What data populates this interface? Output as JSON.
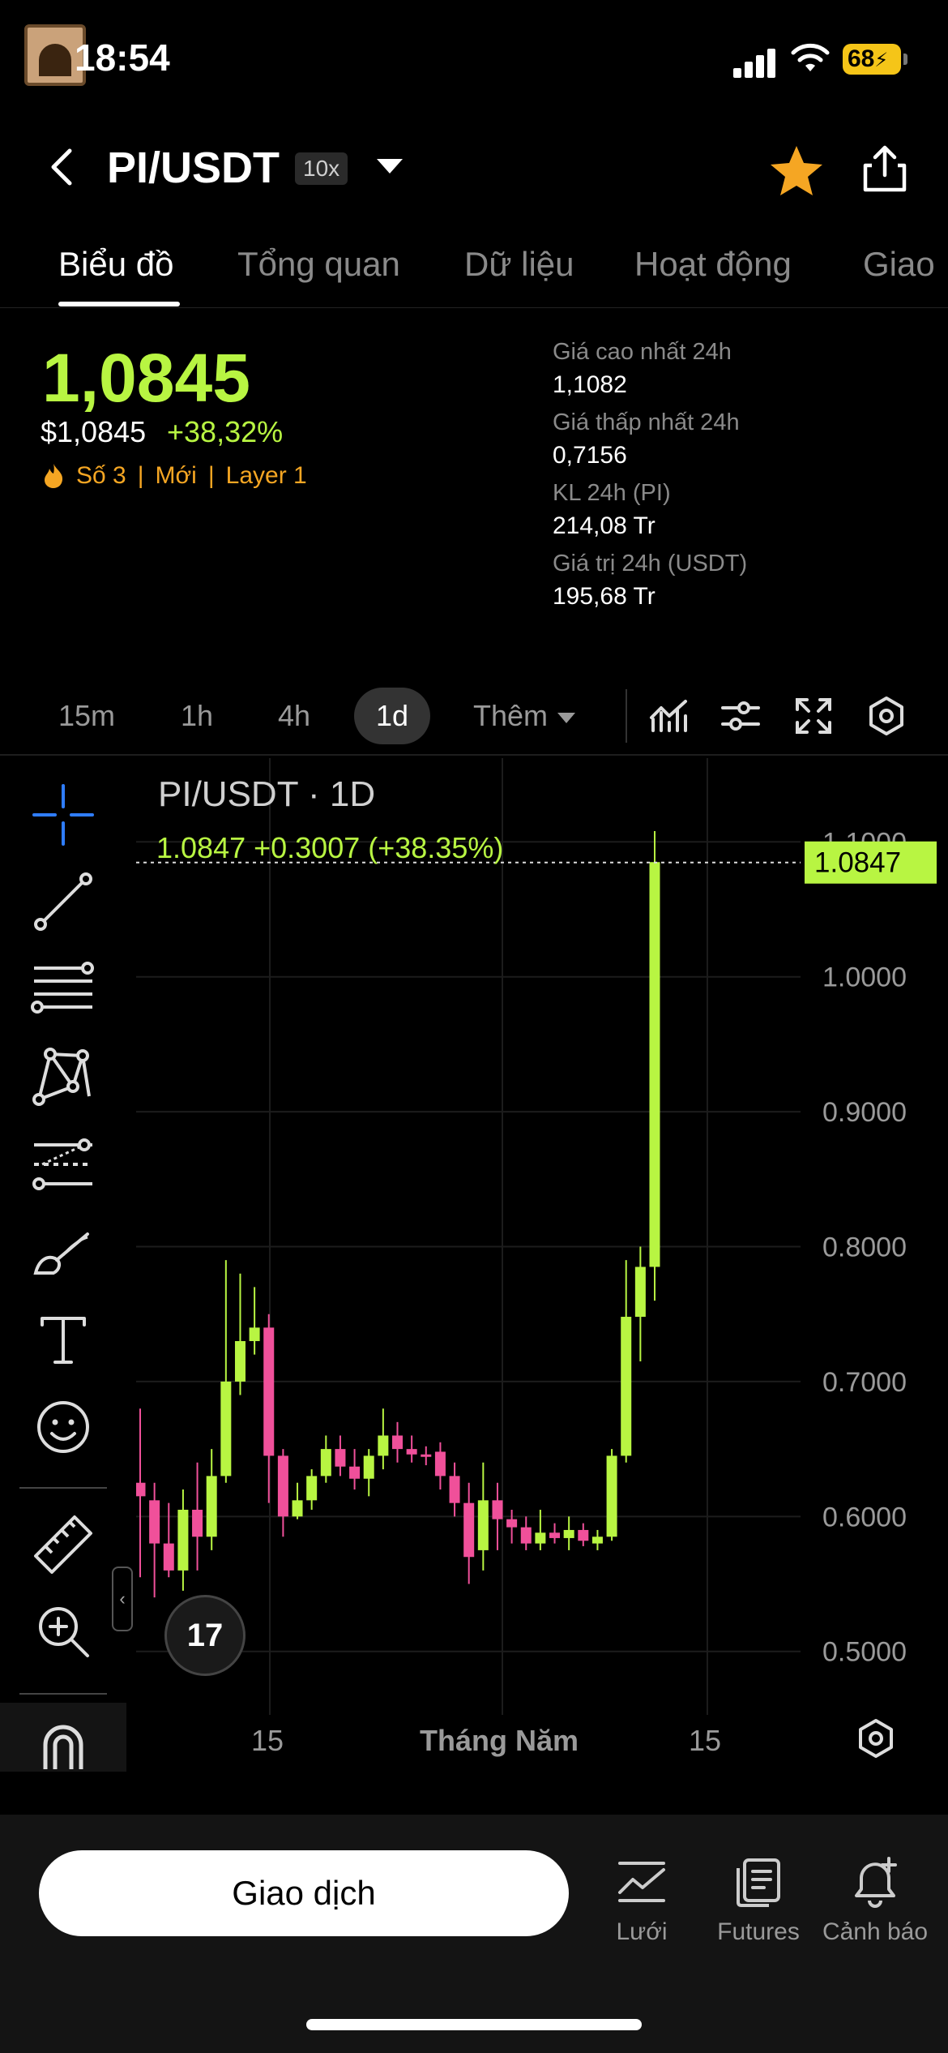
{
  "status": {
    "time": "18:54",
    "battery": "68"
  },
  "header": {
    "pair": "PI/USDT",
    "leverage": "10x"
  },
  "tabs": [
    {
      "label": "Biểu đồ"
    },
    {
      "label": "Tổng quan"
    },
    {
      "label": "Dữ liệu"
    },
    {
      "label": "Hoạt động"
    },
    {
      "label": "Giao"
    }
  ],
  "price": {
    "last": "1,0845",
    "usd": "$1,0845",
    "change": "+38,32%",
    "tags": [
      "Số 3",
      "Mới",
      "Layer 1"
    ]
  },
  "stats": [
    {
      "label": "Giá cao nhất 24h",
      "value": "1,1082"
    },
    {
      "label": "Giá thấp nhất 24h",
      "value": "0,7156"
    },
    {
      "label": "KL 24h (PI)",
      "value": "214,08 Tr"
    },
    {
      "label": "Giá trị 24h (USDT)",
      "value": "195,68 Tr"
    }
  ],
  "timeframes": [
    "15m",
    "1h",
    "4h",
    "1d"
  ],
  "timeframe_more": "Thêm",
  "chart": {
    "title": "PI/USDT · 1D",
    "ohlc_line": "1.0847  +0.3007 (+38.35%)",
    "current_price_label": "1.0847",
    "xaxis": [
      "15",
      "Tháng Năm",
      "15"
    ],
    "tv_logo": "17"
  },
  "chart_data": {
    "type": "candlestick",
    "title": "PI/USDT · 1D",
    "ylim": [
      0.48,
      1.12
    ],
    "yticks": [
      "1.1000",
      "1.0000",
      "0.9000",
      "0.8000",
      "0.7000",
      "0.6000",
      "0.5000"
    ],
    "ytick_values": [
      1.1,
      1.0,
      0.9,
      0.8,
      0.7,
      0.6,
      0.5
    ],
    "xlabels": [
      "15",
      "Tháng Năm",
      "15"
    ],
    "up_color": "#b8f542",
    "down_color": "#f0509a",
    "last_price": 1.0847,
    "candles": [
      {
        "o": 0.625,
        "h": 0.68,
        "l": 0.555,
        "c": 0.615
      },
      {
        "o": 0.612,
        "h": 0.625,
        "l": 0.54,
        "c": 0.58
      },
      {
        "o": 0.58,
        "h": 0.61,
        "l": 0.555,
        "c": 0.56
      },
      {
        "o": 0.56,
        "h": 0.62,
        "l": 0.545,
        "c": 0.605
      },
      {
        "o": 0.605,
        "h": 0.64,
        "l": 0.56,
        "c": 0.585
      },
      {
        "o": 0.585,
        "h": 0.65,
        "l": 0.575,
        "c": 0.63
      },
      {
        "o": 0.63,
        "h": 0.79,
        "l": 0.625,
        "c": 0.7
      },
      {
        "o": 0.7,
        "h": 0.78,
        "l": 0.69,
        "c": 0.73
      },
      {
        "o": 0.73,
        "h": 0.77,
        "l": 0.72,
        "c": 0.74
      },
      {
        "o": 0.74,
        "h": 0.75,
        "l": 0.61,
        "c": 0.645
      },
      {
        "o": 0.645,
        "h": 0.65,
        "l": 0.585,
        "c": 0.6
      },
      {
        "o": 0.6,
        "h": 0.625,
        "l": 0.598,
        "c": 0.612
      },
      {
        "o": 0.612,
        "h": 0.635,
        "l": 0.605,
        "c": 0.63
      },
      {
        "o": 0.63,
        "h": 0.66,
        "l": 0.625,
        "c": 0.65
      },
      {
        "o": 0.65,
        "h": 0.66,
        "l": 0.63,
        "c": 0.637
      },
      {
        "o": 0.637,
        "h": 0.65,
        "l": 0.62,
        "c": 0.628
      },
      {
        "o": 0.628,
        "h": 0.65,
        "l": 0.615,
        "c": 0.645
      },
      {
        "o": 0.645,
        "h": 0.68,
        "l": 0.635,
        "c": 0.66
      },
      {
        "o": 0.66,
        "h": 0.67,
        "l": 0.64,
        "c": 0.65
      },
      {
        "o": 0.65,
        "h": 0.66,
        "l": 0.64,
        "c": 0.646
      },
      {
        "o": 0.646,
        "h": 0.652,
        "l": 0.638,
        "c": 0.645
      },
      {
        "o": 0.648,
        "h": 0.655,
        "l": 0.62,
        "c": 0.63
      },
      {
        "o": 0.63,
        "h": 0.64,
        "l": 0.6,
        "c": 0.61
      },
      {
        "o": 0.61,
        "h": 0.625,
        "l": 0.55,
        "c": 0.57
      },
      {
        "o": 0.575,
        "h": 0.64,
        "l": 0.56,
        "c": 0.612
      },
      {
        "o": 0.612,
        "h": 0.625,
        "l": 0.575,
        "c": 0.598
      },
      {
        "o": 0.598,
        "h": 0.605,
        "l": 0.58,
        "c": 0.592
      },
      {
        "o": 0.592,
        "h": 0.6,
        "l": 0.575,
        "c": 0.58
      },
      {
        "o": 0.58,
        "h": 0.605,
        "l": 0.575,
        "c": 0.588
      },
      {
        "o": 0.588,
        "h": 0.595,
        "l": 0.58,
        "c": 0.584
      },
      {
        "o": 0.584,
        "h": 0.6,
        "l": 0.575,
        "c": 0.59
      },
      {
        "o": 0.59,
        "h": 0.595,
        "l": 0.578,
        "c": 0.582
      },
      {
        "o": 0.58,
        "h": 0.59,
        "l": 0.575,
        "c": 0.585
      },
      {
        "o": 0.585,
        "h": 0.65,
        "l": 0.582,
        "c": 0.645
      },
      {
        "o": 0.645,
        "h": 0.79,
        "l": 0.64,
        "c": 0.748
      },
      {
        "o": 0.748,
        "h": 0.8,
        "l": 0.715,
        "c": 0.785
      },
      {
        "o": 0.785,
        "h": 1.108,
        "l": 0.76,
        "c": 1.085
      }
    ]
  },
  "bottom": {
    "trade": "Giao dịch",
    "nav": [
      {
        "label": "Lưới",
        "icon": "grid-chart-icon"
      },
      {
        "label": "Futures",
        "icon": "futures-icon"
      },
      {
        "label": "Cảnh báo",
        "icon": "alert-bell-icon"
      }
    ]
  }
}
